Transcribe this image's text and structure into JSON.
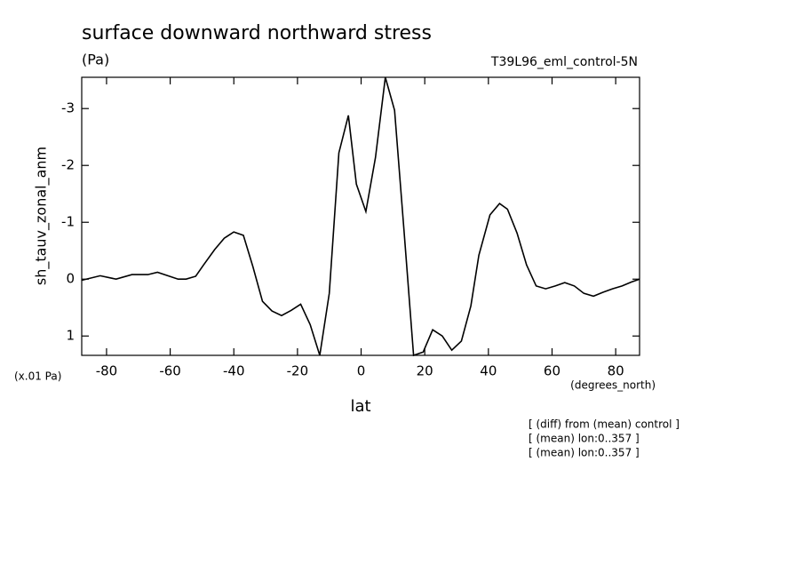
{
  "chart_data": {
    "type": "line",
    "title": "surface downward northward stress",
    "subtitle": "(Pa)",
    "run_label": "T39L96_eml_control-5N",
    "y_label": "sh_tauv_zonal_anm",
    "y_scale_note": "(x.01 Pa)",
    "x_label": "lat",
    "x_units": "(degrees_north)",
    "notes": [
      "[ (diff) from (mean) control ]",
      "[ (mean) lon:0..357 ]",
      "[ (mean) lon:0..357 ]"
    ],
    "color": "#000000",
    "x": [
      -87.8,
      -82,
      -77,
      -72,
      -67,
      -64,
      -57.5,
      -55,
      -52,
      -49.5,
      -46,
      -43,
      -40,
      -37,
      -34,
      -31,
      -28,
      -25,
      -22,
      -19,
      -16,
      -13,
      -10,
      -7,
      -4,
      -1.5,
      1.5,
      4.5,
      7.6,
      10.5,
      13.5,
      16.5,
      19.5,
      22.5,
      25.5,
      28.5,
      31.5,
      34.5,
      37,
      40.5,
      43.5,
      46,
      49,
      52,
      55,
      58,
      61,
      64,
      67,
      70,
      73,
      76,
      79,
      82,
      85,
      87.5
    ],
    "values": [
      0.02,
      -0.06,
      0,
      -0.08,
      -0.08,
      -0.12,
      0,
      0,
      -0.05,
      -0.25,
      -0.52,
      -0.72,
      -0.83,
      -0.77,
      -0.22,
      0.39,
      0.56,
      0.64,
      0.55,
      0.44,
      0.8,
      1.34,
      0.25,
      -2.22,
      -2.88,
      -1.67,
      -1.19,
      -2.14,
      -3.55,
      -2.97,
      -0.84,
      1.34,
      1.28,
      0.89,
      1.0,
      1.25,
      1.09,
      0.47,
      -0.42,
      -1.13,
      -1.33,
      -1.23,
      -0.81,
      -0.25,
      0.12,
      0.17,
      0.12,
      0.06,
      0.12,
      0.25,
      0.3,
      0.23,
      0.17,
      0.12,
      0.05,
      0
    ],
    "xlim": [
      -87.8,
      87.5
    ],
    "ylim": [
      1.34,
      -3.55
    ],
    "xticks": [
      -80,
      -60,
      -40,
      -20,
      0,
      20,
      40,
      60,
      80
    ],
    "yticks": [
      -3,
      -2,
      -1,
      0,
      1
    ]
  }
}
